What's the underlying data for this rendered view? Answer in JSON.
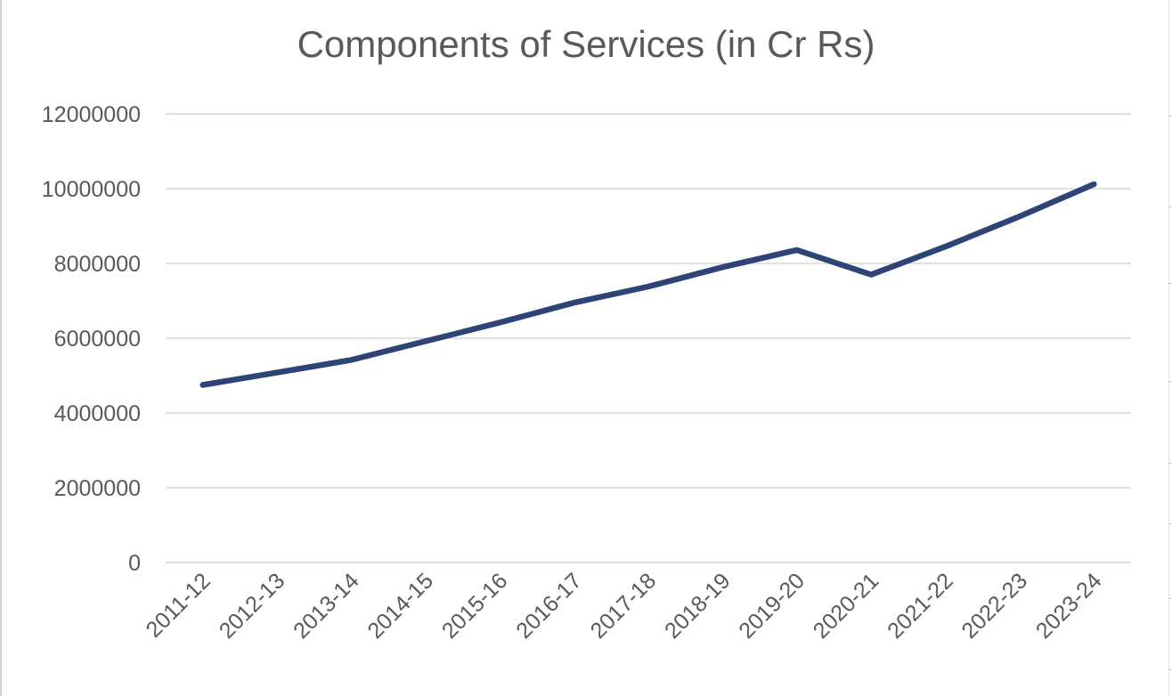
{
  "chart_data": {
    "type": "line",
    "title": "Components of Services (in Cr Rs)",
    "xlabel": "",
    "ylabel": "",
    "categories": [
      "2011-12",
      "2012-13",
      "2013-14",
      "2014-15",
      "2015-16",
      "2016-17",
      "2017-18",
      "2018-19",
      "2019-20",
      "2020-21",
      "2021-22",
      "2022-23",
      "2023-24"
    ],
    "series": [
      {
        "color": "#2e4477",
        "values": [
          4750000,
          5080000,
          5420000,
          5920000,
          6420000,
          6950000,
          7380000,
          7900000,
          8360000,
          7700000,
          8450000,
          9260000,
          10120000
        ]
      }
    ],
    "ylim": [
      0,
      12000000
    ],
    "yticks": [
      0,
      2000000,
      4000000,
      6000000,
      8000000,
      10000000,
      12000000
    ],
    "ytick_labels": [
      "0",
      "2000000",
      "4000000",
      "6000000",
      "8000000",
      "10000000",
      "12000000"
    ],
    "grid": true,
    "legend": "none"
  }
}
